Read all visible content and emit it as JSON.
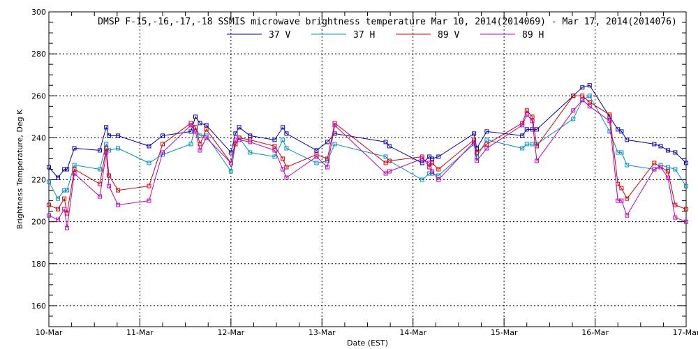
{
  "chart_data": {
    "type": "line",
    "title": "DMSP F-15,-16,-17,-18 SSMIS microwave brightness temperature Mar 10, 2014(2014069) - Mar 17, 2014(2014076)",
    "xlabel": "Date (EST)",
    "ylabel": "Brightness Temperature, Deg K",
    "xlim": [
      0,
      7
    ],
    "ylim": [
      150,
      300
    ],
    "x_tick_labels": [
      "10-Mar",
      "11-Mar",
      "12-Mar",
      "13-Mar",
      "14-Mar",
      "15-Mar",
      "16-Mar",
      "17-Mar"
    ],
    "y_ticks": [
      160,
      180,
      200,
      220,
      240,
      260,
      280,
      300
    ],
    "grid": "dotted",
    "legend_position": "top-center",
    "series": [
      {
        "name": "37 V",
        "color": "#0000b0",
        "points": [
          [
            0.0,
            226
          ],
          [
            0.1,
            221
          ],
          [
            0.17,
            225
          ],
          [
            0.2,
            225
          ],
          [
            0.28,
            235
          ],
          [
            0.56,
            234
          ],
          [
            0.63,
            245
          ],
          [
            0.66,
            241
          ],
          [
            0.76,
            241
          ],
          [
            1.1,
            236
          ],
          [
            1.25,
            241
          ],
          [
            1.56,
            243
          ],
          [
            1.61,
            250
          ],
          [
            1.66,
            247
          ],
          [
            1.73,
            246
          ],
          [
            2.0,
            233
          ],
          [
            2.05,
            242
          ],
          [
            2.09,
            245
          ],
          [
            2.21,
            241
          ],
          [
            2.48,
            239
          ],
          [
            2.57,
            245
          ],
          [
            2.61,
            242
          ],
          [
            2.94,
            234
          ],
          [
            3.06,
            238
          ],
          [
            3.14,
            242
          ],
          [
            3.7,
            238
          ],
          [
            3.74,
            236
          ],
          [
            4.1,
            228
          ],
          [
            4.18,
            231
          ],
          [
            4.21,
            230
          ],
          [
            4.28,
            231
          ],
          [
            4.67,
            242
          ],
          [
            4.7,
            235
          ],
          [
            4.81,
            243
          ],
          [
            5.2,
            241
          ],
          [
            5.25,
            244
          ],
          [
            5.31,
            244
          ],
          [
            5.36,
            244
          ],
          [
            5.76,
            260
          ],
          [
            5.86,
            264
          ],
          [
            5.94,
            265
          ],
          [
            6.16,
            250
          ],
          [
            6.25,
            244
          ],
          [
            6.29,
            243
          ],
          [
            6.35,
            239
          ],
          [
            6.65,
            237
          ],
          [
            6.72,
            236
          ],
          [
            6.8,
            234
          ],
          [
            6.88,
            233
          ],
          [
            7.0,
            228
          ]
        ]
      },
      {
        "name": "37 H",
        "color": "#0090c8",
        "points": [
          [
            0.0,
            219
          ],
          [
            0.1,
            211
          ],
          [
            0.17,
            215
          ],
          [
            0.2,
            215
          ],
          [
            0.28,
            227
          ],
          [
            0.56,
            225
          ],
          [
            0.63,
            237
          ],
          [
            0.66,
            234
          ],
          [
            0.76,
            235
          ],
          [
            1.1,
            228
          ],
          [
            1.25,
            232
          ],
          [
            1.56,
            237
          ],
          [
            1.61,
            245
          ],
          [
            1.66,
            241
          ],
          [
            1.73,
            241
          ],
          [
            2.0,
            224
          ],
          [
            2.05,
            237
          ],
          [
            2.09,
            240
          ],
          [
            2.21,
            233
          ],
          [
            2.48,
            231
          ],
          [
            2.57,
            239
          ],
          [
            2.61,
            235
          ],
          [
            2.94,
            228
          ],
          [
            3.06,
            229
          ],
          [
            3.14,
            237
          ],
          [
            3.7,
            231
          ],
          [
            3.74,
            229
          ],
          [
            4.1,
            220
          ],
          [
            4.18,
            223
          ],
          [
            4.21,
            223
          ],
          [
            4.28,
            222
          ],
          [
            4.67,
            237
          ],
          [
            4.7,
            231
          ],
          [
            4.81,
            239
          ],
          [
            5.2,
            235
          ],
          [
            5.25,
            237
          ],
          [
            5.31,
            237
          ],
          [
            5.36,
            237
          ],
          [
            5.76,
            249
          ],
          [
            5.86,
            258
          ],
          [
            5.94,
            260
          ],
          [
            6.16,
            243
          ],
          [
            6.25,
            233
          ],
          [
            6.29,
            233
          ],
          [
            6.35,
            227
          ],
          [
            6.65,
            225
          ],
          [
            6.72,
            227
          ],
          [
            6.8,
            226
          ],
          [
            6.88,
            225
          ],
          [
            7.0,
            217
          ]
        ]
      },
      {
        "name": "89 V",
        "color": "#d00000",
        "points": [
          [
            0.0,
            208
          ],
          [
            0.1,
            206
          ],
          [
            0.17,
            211
          ],
          [
            0.2,
            204
          ],
          [
            0.28,
            225
          ],
          [
            0.56,
            218
          ],
          [
            0.63,
            235
          ],
          [
            0.66,
            222
          ],
          [
            0.76,
            215
          ],
          [
            1.1,
            217
          ],
          [
            1.25,
            237
          ],
          [
            1.56,
            247
          ],
          [
            1.61,
            245
          ],
          [
            1.66,
            237
          ],
          [
            1.73,
            244
          ],
          [
            2.0,
            228
          ],
          [
            2.05,
            237
          ],
          [
            2.09,
            240
          ],
          [
            2.21,
            239
          ],
          [
            2.48,
            236
          ],
          [
            2.57,
            230
          ],
          [
            2.61,
            226
          ],
          [
            2.94,
            232
          ],
          [
            3.06,
            230
          ],
          [
            3.14,
            247
          ],
          [
            3.7,
            228
          ],
          [
            3.74,
            229
          ],
          [
            4.1,
            231
          ],
          [
            4.18,
            226
          ],
          [
            4.21,
            228
          ],
          [
            4.28,
            225
          ],
          [
            4.67,
            239
          ],
          [
            4.7,
            233
          ],
          [
            4.81,
            237
          ],
          [
            5.2,
            247
          ],
          [
            5.25,
            253
          ],
          [
            5.31,
            250
          ],
          [
            5.36,
            236
          ],
          [
            5.76,
            260
          ],
          [
            5.86,
            260
          ],
          [
            5.94,
            257
          ],
          [
            6.16,
            251
          ],
          [
            6.25,
            218
          ],
          [
            6.29,
            216
          ],
          [
            6.35,
            211
          ],
          [
            6.65,
            228
          ],
          [
            6.72,
            226
          ],
          [
            6.8,
            224
          ],
          [
            6.88,
            208
          ],
          [
            7.0,
            206
          ]
        ]
      },
      {
        "name": "89 H",
        "color": "#c000c0",
        "points": [
          [
            0.0,
            203
          ],
          [
            0.1,
            201
          ],
          [
            0.17,
            206
          ],
          [
            0.2,
            197
          ],
          [
            0.28,
            223
          ],
          [
            0.56,
            212
          ],
          [
            0.63,
            233
          ],
          [
            0.66,
            217
          ],
          [
            0.76,
            208
          ],
          [
            1.1,
            210
          ],
          [
            1.25,
            233
          ],
          [
            1.56,
            246
          ],
          [
            1.61,
            243
          ],
          [
            1.66,
            234
          ],
          [
            1.73,
            240
          ],
          [
            2.0,
            228
          ],
          [
            2.05,
            239
          ],
          [
            2.09,
            239
          ],
          [
            2.21,
            238
          ],
          [
            2.48,
            234
          ],
          [
            2.57,
            225
          ],
          [
            2.61,
            221
          ],
          [
            2.94,
            231
          ],
          [
            3.06,
            226
          ],
          [
            3.14,
            246
          ],
          [
            3.7,
            223
          ],
          [
            3.74,
            224
          ],
          [
            4.1,
            230
          ],
          [
            4.18,
            228
          ],
          [
            4.21,
            224
          ],
          [
            4.28,
            220
          ],
          [
            4.67,
            238
          ],
          [
            4.7,
            229
          ],
          [
            4.81,
            235
          ],
          [
            5.2,
            246
          ],
          [
            5.25,
            251
          ],
          [
            5.31,
            248
          ],
          [
            5.36,
            229
          ],
          [
            5.76,
            253
          ],
          [
            5.86,
            258
          ],
          [
            5.94,
            255
          ],
          [
            6.16,
            248
          ],
          [
            6.25,
            210
          ],
          [
            6.29,
            210
          ],
          [
            6.35,
            203
          ],
          [
            6.65,
            225
          ],
          [
            6.72,
            226
          ],
          [
            6.8,
            221
          ],
          [
            6.88,
            202
          ],
          [
            7.0,
            200
          ]
        ]
      }
    ]
  }
}
